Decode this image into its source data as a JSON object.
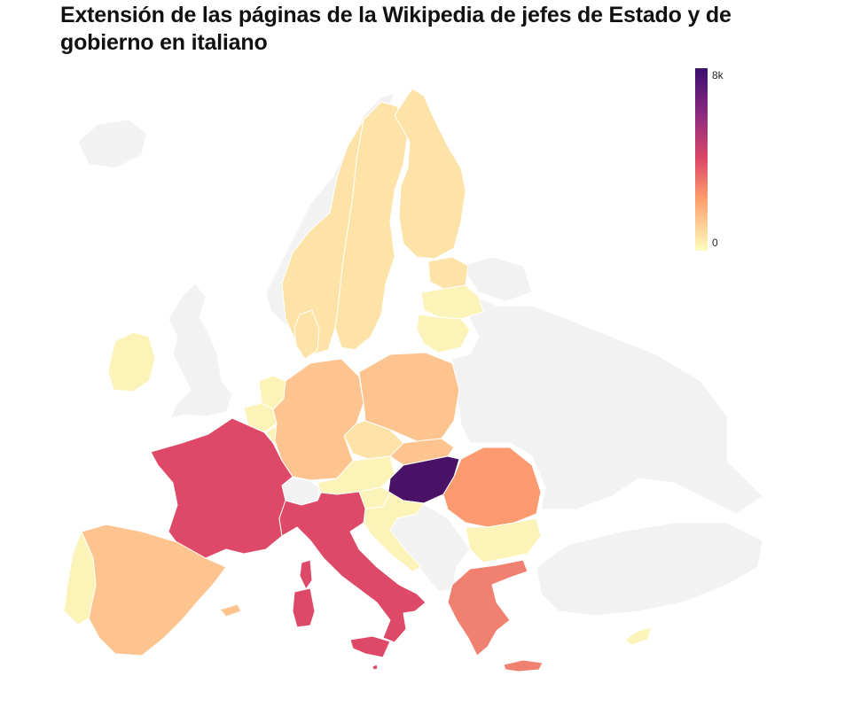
{
  "title": "Extensión de las páginas de la Wikipedia de jefes de Estado y de gobierno en italiano",
  "legend": {
    "max_label": "8k",
    "min_label": "0",
    "scale": "sequential magma",
    "max_value": 8000,
    "min_value": 0
  },
  "footnote": "",
  "colors": {
    "nodata": "#f2f2f2",
    "border": "#ffffff",
    "very_low": "#fcf3b8",
    "low": "#fde3a7",
    "mid_low": "#fdc48f",
    "mid": "#fb9a6f",
    "mid_high": "#f08070",
    "high": "#de4968",
    "max": "#4a1266"
  },
  "countries": [
    {
      "name": "Hungría",
      "level": "max"
    },
    {
      "name": "Francia",
      "level": "high"
    },
    {
      "name": "Italia",
      "level": "high"
    },
    {
      "name": "Rumanía",
      "level": "mid"
    },
    {
      "name": "Grecia",
      "level": "mid_high"
    },
    {
      "name": "España",
      "level": "mid_low"
    },
    {
      "name": "Alemania",
      "level": "mid_low"
    },
    {
      "name": "Polonia",
      "level": "mid_low"
    },
    {
      "name": "Eslovaquia",
      "level": "mid_low"
    },
    {
      "name": "Chequia",
      "level": "low"
    },
    {
      "name": "Suecia",
      "level": "low"
    },
    {
      "name": "Finlandia",
      "level": "low"
    },
    {
      "name": "Estonia",
      "level": "low"
    },
    {
      "name": "Dinamarca",
      "level": "low"
    },
    {
      "name": "Bélgica",
      "level": "very_low"
    },
    {
      "name": "Países Bajos",
      "level": "very_low"
    },
    {
      "name": "Luxemburgo",
      "level": "very_low"
    },
    {
      "name": "Austria",
      "level": "very_low"
    },
    {
      "name": "Eslovenia",
      "level": "very_low"
    },
    {
      "name": "Croacia",
      "level": "very_low"
    },
    {
      "name": "Bulgaria",
      "level": "very_low"
    },
    {
      "name": "Letonia",
      "level": "very_low"
    },
    {
      "name": "Lituania",
      "level": "very_low"
    },
    {
      "name": "Irlanda",
      "level": "very_low"
    },
    {
      "name": "Portugal",
      "level": "very_low"
    },
    {
      "name": "Chipre",
      "level": "very_low"
    },
    {
      "name": "Malta",
      "level": "high"
    }
  ]
}
